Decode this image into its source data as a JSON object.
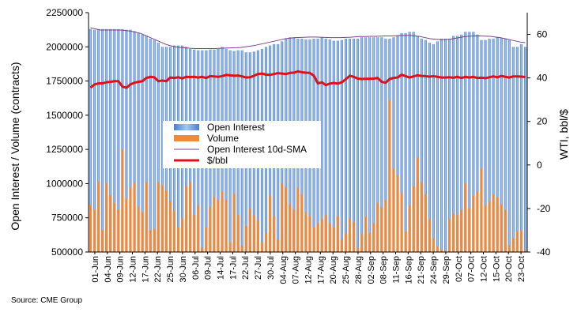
{
  "colors": {
    "open_interest": "#5b8fd9",
    "volume": "#ef8a3c",
    "sma": "#7b3f8c",
    "price": "#e0101a"
  },
  "source": "Source: CME Group",
  "chart_data": {
    "type": "bar",
    "xlabels": [
      "01-Jun",
      "04-Jun",
      "09-Jun",
      "12-Jun",
      "17-Jun",
      "22-Jun",
      "25-Jun",
      "30-Jun",
      "06-Jul",
      "09-Jul",
      "14-Jul",
      "17-Jul",
      "22-Jul",
      "27-Jul",
      "30-Jul",
      "04-Aug",
      "07-Aug",
      "12-Aug",
      "17-Aug",
      "20-Aug",
      "25-Aug",
      "28-Aug",
      "02-Sep",
      "08-Sep",
      "11-Sep",
      "16-Sep",
      "21-Sep",
      "24-Sep",
      "29-Sep",
      "02-Oct",
      "07-Oct",
      "12-Oct",
      "15-Oct",
      "20-Oct",
      "23-Oct"
    ],
    "ylabel_left": "Open Interest / Volume (contracts)",
    "ylabel_right": "WTI, bbl/$",
    "ylim_left": [
      500000,
      2250000
    ],
    "yticks_left": [
      "500000",
      "750000",
      "1000000",
      "1250000",
      "1500000",
      "1750000",
      "2000000",
      "2250000"
    ],
    "ylim_right": [
      -40,
      70
    ],
    "yticks_right": [
      "-40",
      "-20",
      "0",
      "20",
      "40",
      "60"
    ],
    "legend": [
      "Open Interest",
      "Volume",
      "Open Interest 10d-SMA",
      "$/bbl"
    ],
    "legend_position": "center-left",
    "series": [
      {
        "name": "Open Interest",
        "type": "bar",
        "values": [
          2130000,
          2125000,
          2130000,
          2130000,
          2130000,
          2130000,
          2130000,
          2130000,
          2130000,
          2125000,
          2125000,
          2115000,
          2100000,
          2090000,
          2080000,
          2060000,
          2050000,
          2030000,
          2000000,
          2000000,
          2000000,
          2010000,
          2010000,
          2010000,
          2000000,
          1985000,
          1980000,
          1975000,
          1975000,
          1975000,
          1980000,
          1980000,
          1985000,
          2000000,
          1985000,
          1975000,
          1970000,
          1975000,
          1975000,
          1960000,
          1960000,
          1965000,
          1975000,
          1985000,
          2000000,
          2010000,
          2020000,
          2020000,
          2040000,
          2060000,
          2070000,
          2070000,
          2060000,
          2060000,
          2055000,
          2055000,
          2060000,
          2060000,
          2070000,
          2060000,
          2055000,
          2045000,
          2045000,
          2050000,
          2060000,
          2060000,
          2060000,
          2060000,
          2070000,
          2070000,
          2070000,
          2070000,
          2070000,
          2070000,
          2060000,
          2060000,
          2070000,
          2080000,
          2100000,
          2100000,
          2110000,
          2110000,
          2080000,
          2060000,
          2050000,
          2030000,
          2020000,
          2040000,
          2060000,
          2060000,
          2060000,
          2080000,
          2080000,
          2090000,
          2110000,
          2110000,
          2110000,
          2090000,
          2050000,
          2050000,
          2060000,
          2060000,
          2070000,
          2065000,
          2060000,
          2050000,
          2000000,
          2000000,
          2020000,
          2000000
        ]
      },
      {
        "name": "Volume",
        "type": "bar",
        "values": [
          845000,
          810000,
          1015000,
          660000,
          1000000,
          915000,
          860000,
          810000,
          1250000,
          890000,
          970000,
          1010000,
          830000,
          790000,
          1010000,
          660000,
          670000,
          1010000,
          990000,
          950000,
          870000,
          800000,
          680000,
          745000,
          980000,
          1010000,
          770000,
          840000,
          530000,
          680000,
          830000,
          905000,
          880000,
          940000,
          880000,
          570000,
          925000,
          770000,
          545000,
          690000,
          815000,
          770000,
          730000,
          570000,
          640000,
          910000,
          760000,
          590000,
          1000000,
          970000,
          850000,
          810000,
          970000,
          920000,
          790000,
          760000,
          680000,
          710000,
          740000,
          770000,
          710000,
          680000,
          760000,
          590000,
          635000,
          745000,
          720000,
          530000,
          630000,
          760000,
          640000,
          710000,
          860000,
          825000,
          880000,
          1610000,
          1110000,
          1060000,
          930000,
          650000,
          840000,
          980000,
          1190000,
          1010000,
          920000,
          740000,
          600000,
          540000,
          520000,
          510000,
          740000,
          780000,
          770000,
          810000,
          1000000,
          820000,
          910000,
          940000,
          1110000,
          840000,
          870000,
          920000,
          900000,
          850000,
          810000,
          550000,
          600000,
          650000,
          660000,
          510000
        ]
      },
      {
        "name": "Open Interest 10d-SMA",
        "type": "line",
        "values": [
          63,
          62.5,
          62,
          62,
          62,
          62,
          62,
          61.8,
          61.5,
          61,
          60.5,
          59.5,
          58.5,
          57.5,
          56.5,
          55.5,
          54.8,
          54.3,
          54,
          53.8,
          53.6,
          53.5,
          53.5,
          53.5,
          53.5,
          53.5,
          53.6,
          53.7,
          53.8,
          53.9,
          54,
          54.3,
          54.6,
          55,
          55.5,
          56,
          56.5,
          57,
          57.5,
          58,
          58.3,
          58.5,
          58.6,
          58.7,
          58.8,
          58.8,
          58.7,
          58.6,
          58.5,
          58.5,
          58.5,
          58.6,
          58.7,
          58.9,
          59,
          59,
          59.1,
          59.1,
          59.2,
          59.3,
          59.3,
          59.4,
          59.5,
          59.5,
          59.5,
          59.3,
          59,
          58.5,
          58,
          57.8,
          57.6,
          57.6,
          57.8,
          58.2,
          58.6,
          59,
          59.2,
          59.3,
          59.3,
          59.2,
          59.1,
          58.8,
          58.5,
          58,
          57.5,
          57,
          56.5,
          56.2
        ]
      },
      {
        "name": "$/bbl",
        "type": "line",
        "values": [
          35.5,
          37,
          37.5,
          37.5,
          38,
          38.2,
          38.5,
          38.5,
          36,
          35.5,
          37,
          37.8,
          38.2,
          38.5,
          40,
          40.5,
          40.3,
          38.5,
          38.8,
          38.5,
          40.2,
          40,
          40.3,
          39.8,
          40.5,
          40.4,
          40.5,
          40.2,
          40.5,
          40,
          40.8,
          40.7,
          40.5,
          40.8,
          41.4,
          41.2,
          41,
          41.1,
          40.7,
          40.2,
          40.3,
          41,
          41.8,
          42,
          41.5,
          41.4,
          41.8,
          42.2,
          42,
          41.8,
          42.3,
          42.4,
          43,
          42.6,
          42.4,
          42.3,
          41,
          37.5,
          38,
          36.7,
          37.4,
          37.7,
          37.4,
          38,
          39.4,
          41,
          40.5,
          39.7,
          39.5,
          39.6,
          39.6,
          39.7,
          40,
          38.2,
          37.8,
          39.5,
          40,
          40.2,
          41.5,
          40.8,
          40.2,
          40.7,
          41.2,
          40.9,
          40.8,
          40.6,
          40.8,
          40.5,
          40.2,
          40.2,
          40.3,
          40.1,
          40.5,
          40,
          40.5,
          40.2,
          40.5,
          40,
          40.1,
          39.9,
          40.3,
          40.7,
          40.3,
          40.9,
          40.5,
          40.2,
          40.7,
          40.7,
          40.6,
          40.4
        ]
      }
    ]
  }
}
